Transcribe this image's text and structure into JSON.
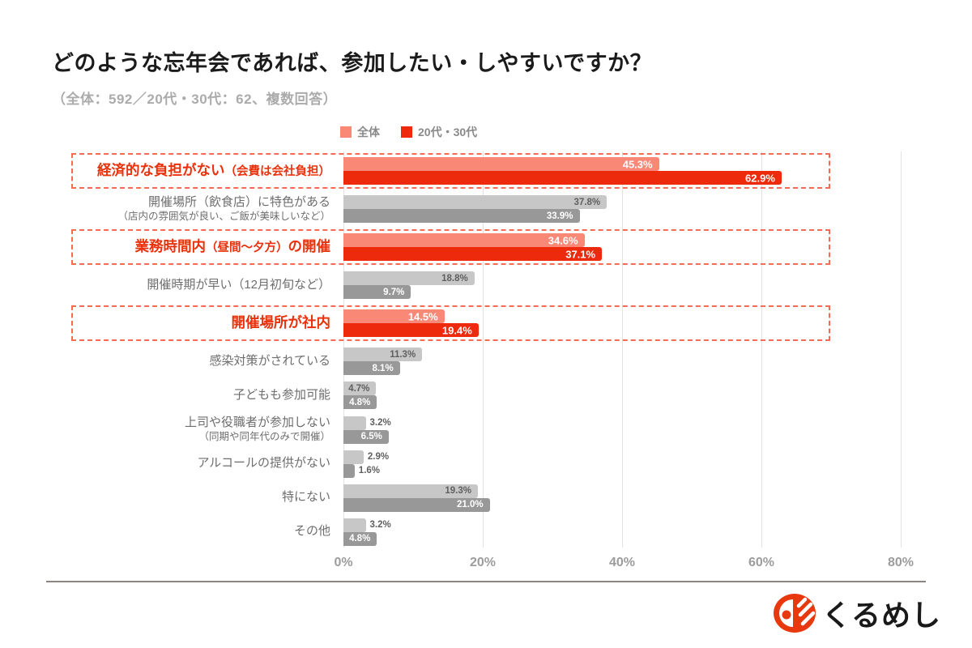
{
  "header": {
    "title": "どのような忘年会であれば、参加したい・しやすいですか？",
    "subtitle": "（全体：592／20代・30代：62、複数回答）"
  },
  "legend": {
    "items": [
      {
        "label": "全体",
        "color": "#F98877"
      },
      {
        "label": "20代・30代",
        "color": "#EE2A0C"
      }
    ]
  },
  "axis": {
    "ticks": [
      "0%",
      "20%",
      "40%",
      "60%",
      "80%"
    ],
    "max": 80
  },
  "rows": [
    {
      "highlight": true,
      "label_parts": [
        {
          "t": "経済的な負担がない",
          "small": false
        },
        {
          "t": "（会費は会社負担）",
          "small": true
        }
      ],
      "line2": "",
      "all": 45.3,
      "all_label": "45.3%",
      "young": 62.9,
      "young_label": "62.9%"
    },
    {
      "highlight": false,
      "label_parts": [
        {
          "t": "開催場所（飲食店）に特色がある",
          "small": false
        }
      ],
      "line2": "（店内の雰囲気が良い、ご飯が美味しいなど）",
      "all": 37.8,
      "all_label": "37.8%",
      "young": 33.9,
      "young_label": "33.9%"
    },
    {
      "highlight": true,
      "label_parts": [
        {
          "t": "業務時間内",
          "small": false
        },
        {
          "t": "（昼間～夕方）",
          "small": true
        },
        {
          "t": "の開催",
          "small": false
        }
      ],
      "line2": "",
      "all": 34.6,
      "all_label": "34.6%",
      "young": 37.1,
      "young_label": "37.1%"
    },
    {
      "highlight": false,
      "label_parts": [
        {
          "t": "開催時期が早い（12月初旬など）",
          "small": false
        }
      ],
      "line2": "",
      "all": 18.8,
      "all_label": "18.8%",
      "young": 9.7,
      "young_label": "9.7%"
    },
    {
      "highlight": true,
      "label_parts": [
        {
          "t": "開催場所が社内",
          "small": false
        }
      ],
      "line2": "",
      "all": 14.5,
      "all_label": "14.5%",
      "young": 19.4,
      "young_label": "19.4%"
    },
    {
      "highlight": false,
      "label_parts": [
        {
          "t": "感染対策がされている",
          "small": false
        }
      ],
      "line2": "",
      "all": 11.3,
      "all_label": "11.3%",
      "young": 8.1,
      "young_label": "8.1%"
    },
    {
      "highlight": false,
      "label_parts": [
        {
          "t": "子どもも参加可能",
          "small": false
        }
      ],
      "line2": "",
      "all": 4.7,
      "all_label": "4.7%",
      "young": 4.8,
      "young_label": "4.8%"
    },
    {
      "highlight": false,
      "label_parts": [
        {
          "t": "上司や役職者が参加しない",
          "small": false
        }
      ],
      "line2": "（同期や同年代のみで開催）",
      "all": 3.2,
      "all_label": "3.2%",
      "young": 6.5,
      "young_label": "6.5%"
    },
    {
      "highlight": false,
      "label_parts": [
        {
          "t": "アルコールの提供がない",
          "small": false
        }
      ],
      "line2": "",
      "all": 2.9,
      "all_label": "2.9%",
      "young": 1.6,
      "young_label": "1.6%"
    },
    {
      "highlight": false,
      "label_parts": [
        {
          "t": "特にない",
          "small": false
        }
      ],
      "line2": "",
      "all": 19.3,
      "all_label": "19.3%",
      "young": 21.0,
      "young_label": "21.0%"
    },
    {
      "highlight": false,
      "label_parts": [
        {
          "t": "その他",
          "small": false
        }
      ],
      "line2": "",
      "all": 3.2,
      "all_label": "3.2%",
      "young": 4.8,
      "young_label": "4.8%"
    }
  ],
  "colors": {
    "pink": "#F98877",
    "red": "#EE2A0C",
    "light_gray": "#C7C7C7",
    "dark_gray": "#989898",
    "label_gray": "#6E6E6E",
    "value_dark": "#5F5F5F",
    "hl_red": "#E9320C",
    "dash": "#F76B55",
    "grid": "#E2E2E2",
    "axis_text": "#9C9C9C",
    "separator": "#8F8585",
    "title_color": "#1B1B1B",
    "subtitle_color": "#ABABAB"
  },
  "footer": {
    "logo_text": "くるめし"
  },
  "chart_data": {
    "type": "bar",
    "orientation": "horizontal",
    "title": "どのような忘年会であれば、参加したい・しやすいですか？",
    "subtitle": "（全体：592／20代・30代：62、複数回答）",
    "categories": [
      "経済的な負担がない（会費は会社負担）",
      "開催場所（飲食店）に特色がある（店内の雰囲気が良い、ご飯が美味しいなど）",
      "業務時間内（昼間～夕方）の開催",
      "開催時期が早い（12月初旬など）",
      "開催場所が社内",
      "感染対策がされている",
      "子どもも参加可能",
      "上司や役職者が参加しない（同期や同年代のみで開催）",
      "アルコールの提供がない",
      "特にない",
      "その他"
    ],
    "series": [
      {
        "name": "全体",
        "values": [
          45.3,
          37.8,
          34.6,
          18.8,
          14.5,
          11.3,
          4.7,
          3.2,
          2.9,
          19.3,
          3.2
        ]
      },
      {
        "name": "20代・30代",
        "values": [
          62.9,
          33.9,
          37.1,
          9.7,
          19.4,
          8.1,
          4.8,
          6.5,
          1.6,
          21.0,
          4.8
        ]
      }
    ],
    "xlim": [
      0,
      80
    ],
    "x_ticks": [
      "0%",
      "20%",
      "40%",
      "60%",
      "80%"
    ],
    "grid": true,
    "legend_position": "top",
    "highlighted_categories": [
      "経済的な負担がない（会費は会社負担）",
      "業務時間内（昼間～夕方）の開催",
      "開催場所が社内"
    ]
  }
}
